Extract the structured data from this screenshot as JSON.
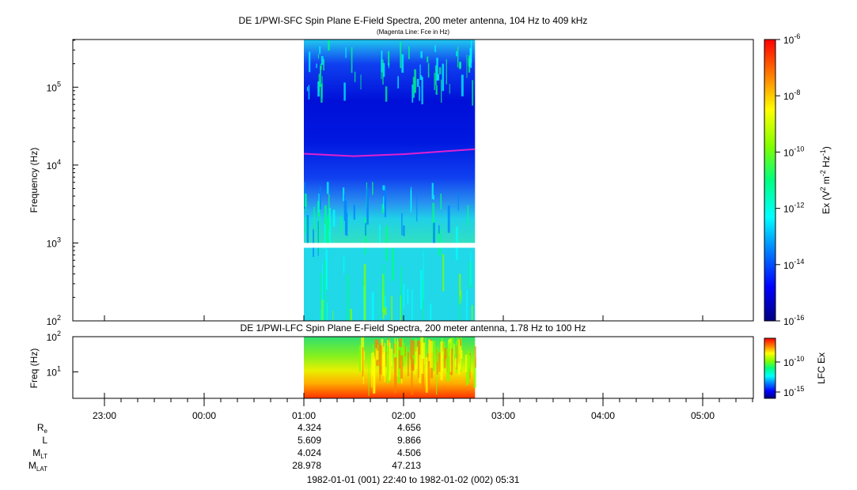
{
  "chart_data": [
    {
      "type": "heatmap",
      "title": "DE 1/PWI-SFC  Spin Plane E-Field Spectra, 200 meter antenna, 104 Hz to 409 kHz",
      "subtitle": "(Magenta Line: Fce in Hz)",
      "ylabel": "Frequency (Hz)",
      "yscale": "log",
      "ylim": [
        100,
        409000
      ],
      "yticks": [
        {
          "v": 100,
          "m": "10",
          "e": "2"
        },
        {
          "v": 1000,
          "m": "10",
          "e": "3"
        },
        {
          "v": 10000,
          "m": "10",
          "e": "4"
        },
        {
          "v": 100000,
          "m": "10",
          "e": "5"
        }
      ],
      "data_coverage": [
        "01:00",
        "02:43"
      ],
      "colorbar": {
        "label": "Ex (V2 m-2 Hz-1)",
        "scale": "log",
        "range": [
          1e-16,
          1e-06
        ],
        "ticks": [
          {
            "v": 1e-06,
            "m": "10",
            "e": "-6"
          },
          {
            "v": 1e-08,
            "m": "10",
            "e": "-8"
          },
          {
            "v": 1e-10,
            "m": "10",
            "e": "-10"
          },
          {
            "v": 1e-12,
            "m": "10",
            "e": "-12"
          },
          {
            "v": 1e-14,
            "m": "10",
            "e": "-14"
          },
          {
            "v": 1e-16,
            "m": "10",
            "e": "-16"
          }
        ]
      },
      "fce_line": {
        "name": "Fce in Hz",
        "color": "#e020d0",
        "points": [
          [
            "01:00",
            14000
          ],
          [
            "01:30",
            13000
          ],
          [
            "02:00",
            13800
          ],
          [
            "02:43",
            16000
          ]
        ]
      }
    },
    {
      "type": "heatmap",
      "title": "DE 1/PWI-LFC  Spin Plane E-Field Spectra, 200 meter antenna, 1.78 Hz to 100 Hz",
      "ylabel": "Freq (Hz)",
      "yscale": "log",
      "ylim": [
        1.78,
        100
      ],
      "yticks": [
        {
          "v": 10,
          "m": "10",
          "e": "1"
        },
        {
          "v": 100,
          "m": "10",
          "e": "2"
        }
      ],
      "data_coverage": [
        "01:00",
        "02:43"
      ],
      "colorbar": {
        "label": "LFC Ex",
        "scale": "log",
        "ticks": [
          {
            "v": 1e-10,
            "m": "10",
            "e": "-10"
          },
          {
            "v": 1e-15,
            "m": "10",
            "e": "-15"
          }
        ]
      }
    }
  ],
  "time_axis": {
    "ticks": [
      "23:00",
      "00:00",
      "01:00",
      "02:00",
      "03:00",
      "04:00",
      "05:00"
    ],
    "range_label": "1982-01-01 (001) 22:40 to 1982-01-02 (002) 05:31"
  },
  "ephemeris": {
    "labels": [
      {
        "main": "R",
        "sub": "e"
      },
      {
        "main": "L",
        "sub": ""
      },
      {
        "main": "M",
        "sub": "LT"
      },
      {
        "main": "M",
        "sub": "LAT"
      }
    ],
    "columns": [
      {
        "time": "01:00",
        "values": [
          "4.324",
          "5.609",
          "4.024",
          "28.978"
        ]
      },
      {
        "time": "02:00",
        "values": [
          "4.656",
          "9.866",
          "4.506",
          "47.213"
        ]
      }
    ]
  },
  "colors": {
    "colormap": [
      "#00007f",
      "#0000ff",
      "#0080ff",
      "#00ffff",
      "#00ff80",
      "#80ff00",
      "#ffff00",
      "#ff8000",
      "#ff0000"
    ],
    "frame": "#000000"
  }
}
